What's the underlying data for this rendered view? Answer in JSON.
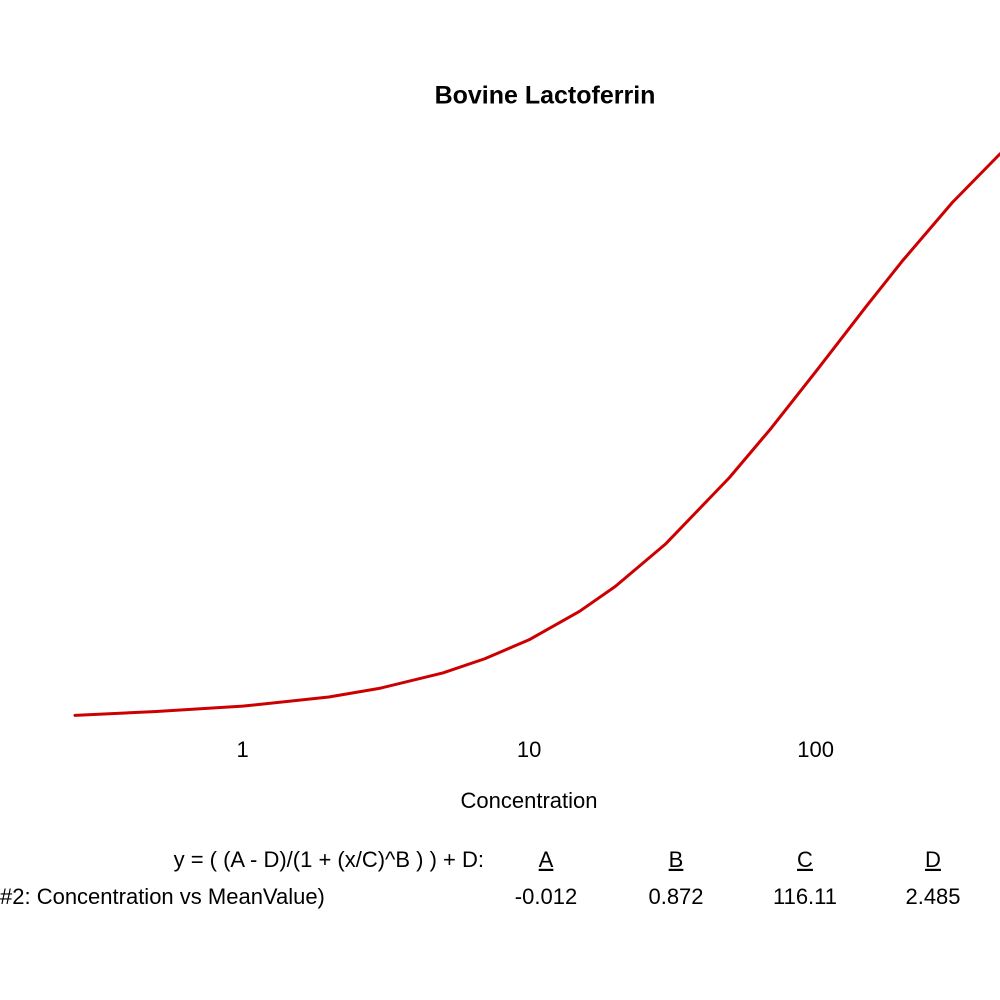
{
  "chart_data": {
    "type": "line",
    "title": "Bovine Lactoferrin",
    "x_label": "Concentration",
    "x_scale": "log",
    "xlim": [
      0.26,
      440
    ],
    "xticks": [
      1,
      10,
      100
    ],
    "ylim": [
      -0.05,
      2.2
    ],
    "grid": false,
    "x": [
      0.26,
      0.5,
      1,
      2,
      3,
      5,
      7,
      10,
      15,
      20,
      30,
      50,
      70,
      100,
      150,
      200,
      300,
      440
    ],
    "series": [
      {
        "color": "#cc0000",
        "values": [
          -0.004,
          0.009,
          0.027,
          0.058,
          0.087,
          0.139,
          0.187,
          0.251,
          0.347,
          0.431,
          0.575,
          0.798,
          0.965,
          1.155,
          1.375,
          1.527,
          1.726,
          1.89
        ]
      }
    ],
    "fit": {
      "equation": "y = ( (A - D)/(1 + (x/C)^B ) ) + D:",
      "series_label": "#2: Concentration vs MeanValue)",
      "parameters": [
        {
          "name": "A",
          "value": -0.012
        },
        {
          "name": "B",
          "value": 0.872
        },
        {
          "name": "C",
          "value": 116.11
        },
        {
          "name": "D",
          "value": 2.485
        }
      ]
    }
  }
}
